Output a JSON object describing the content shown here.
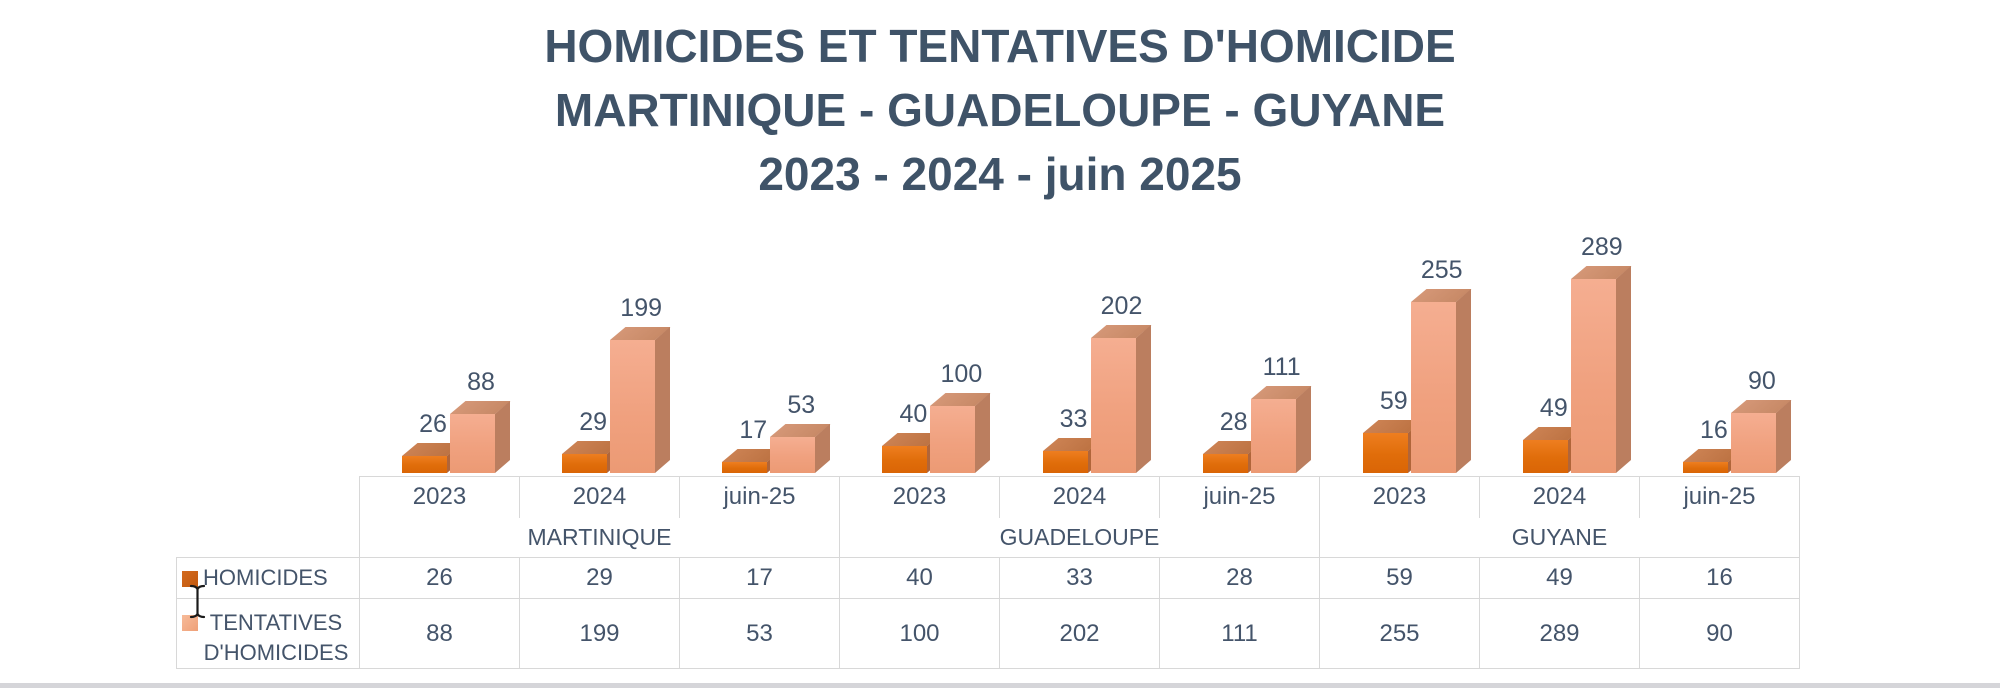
{
  "title": {
    "line1": "HOMICIDES ET TENTATIVES D'HOMICIDE",
    "line2": "MARTINIQUE - GUADELOUPE - GUYANE",
    "line3": "2023 - 2024 - juin 2025"
  },
  "chart_data": {
    "type": "bar",
    "style": "3d-clustered-column",
    "title": "HOMICIDES ET TENTATIVES D'HOMICIDE MARTINIQUE - GUADELOUPE - GUYANE 2023 - 2024 - juin 2025",
    "regions": [
      "MARTINIQUE",
      "GUADELOUPE",
      "GUYANE"
    ],
    "periods": [
      "2023",
      "2024",
      "juin-25"
    ],
    "categories": [
      "MARTINIQUE 2023",
      "MARTINIQUE 2024",
      "MARTINIQUE juin-25",
      "GUADELOUPE 2023",
      "GUADELOUPE 2024",
      "GUADELOUPE juin-25",
      "GUYANE 2023",
      "GUYANE 2024",
      "GUYANE juin-25"
    ],
    "series": [
      {
        "name": "HOMICIDES",
        "color": "#E2700D",
        "values": [
          26,
          29,
          17,
          40,
          33,
          28,
          59,
          49,
          16
        ]
      },
      {
        "name": "TENTATIVES D'HOMICIDES",
        "color": "#F0A17F",
        "values": [
          88,
          199,
          53,
          100,
          202,
          111,
          255,
          289,
          90
        ]
      }
    ],
    "ylim": [
      0,
      300
    ],
    "grid": false,
    "data_labels": true,
    "legend_position": "table-left"
  },
  "legend": {
    "homicides_label": "HOMICIDES",
    "tentatives_label_line1": "TENTATIVES",
    "tentatives_label_line2": "D'HOMICIDES"
  },
  "colors": {
    "title_text": "#3F5368",
    "label_text": "#44546A",
    "homicides_front": "#E2700D",
    "homicides_top": "#C47B4A",
    "homicides_side": "#B0653A",
    "tentatives_front": "#F0A17F",
    "tentatives_top": "#CF9170",
    "tentatives_side": "#BB7E5F",
    "table_border": "#D8D8D8",
    "bottom_strip": "#D5D5D9"
  },
  "icons": {
    "cursor": "text-cursor-icon"
  }
}
